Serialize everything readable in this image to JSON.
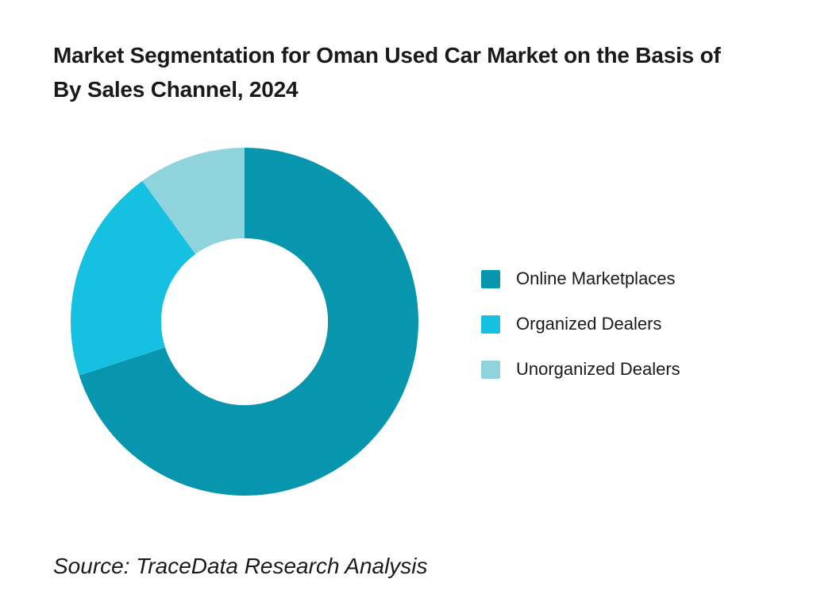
{
  "page": {
    "background_color": "#ffffff"
  },
  "header": {
    "title_line1": "Market Segmentation for Oman Used Car Market on the Basis of",
    "title_line2": "By Sales Channel, 2024"
  },
  "chart_data": {
    "type": "pie",
    "subtype": "donut",
    "title": "Market Segmentation for Oman Used Car Market on the Basis of By Sales Channel, 2024",
    "categories": [
      "Online Marketplaces",
      "Organized Dealers",
      "Unorganized Dealers"
    ],
    "values": [
      70,
      20,
      10
    ],
    "unit": "percent",
    "colors": [
      "#0896AE",
      "#16C0E0",
      "#8FD3DC"
    ],
    "start_angle_deg": 0,
    "direction": "clockwise",
    "inner_radius_ratio": 0.48,
    "legend_position": "right",
    "data_labels": "none"
  },
  "legend": {
    "items": [
      {
        "label": "Online Marketplaces",
        "color": "#0896AE"
      },
      {
        "label": "Organized Dealers",
        "color": "#16C0E0"
      },
      {
        "label": "Unorganized Dealers",
        "color": "#8FD3DC"
      }
    ]
  },
  "footer": {
    "source": "Source: TraceData Research Analysis"
  }
}
